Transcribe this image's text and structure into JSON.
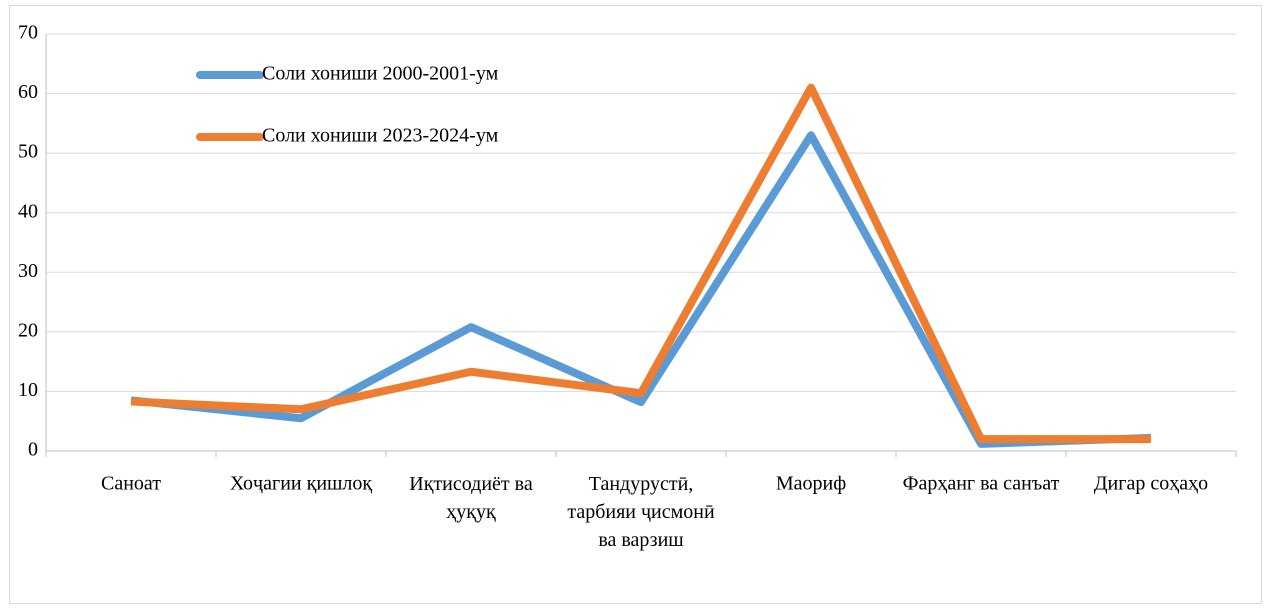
{
  "chart_data": {
    "type": "line",
    "categories": [
      "Саноат",
      "Хоҷагии қишлоқ",
      "Иқтисодиёт ва ҳуқуқ",
      "Тандурустӣ, тарбияи ҷисмонӣ ва варзиш",
      "Маориф",
      "Фарҳанг ва санъат",
      "Дигар соҳаҳо"
    ],
    "series": [
      {
        "name": "Соли хониши 2000-2001-ум",
        "color": "#5b9bd5",
        "values": [
          8.5,
          5.5,
          20.8,
          8.2,
          53,
          1.2,
          2.2
        ]
      },
      {
        "name": "Соли хониши 2023-2024-ум",
        "color": "#ed7d31",
        "values": [
          8.3,
          7,
          13.3,
          9.7,
          61,
          2,
          2
        ]
      }
    ],
    "ylim": [
      0,
      70
    ],
    "yticks": [
      0,
      10,
      20,
      30,
      40,
      50,
      60,
      70
    ],
    "grid": true,
    "legend": "top-left"
  }
}
